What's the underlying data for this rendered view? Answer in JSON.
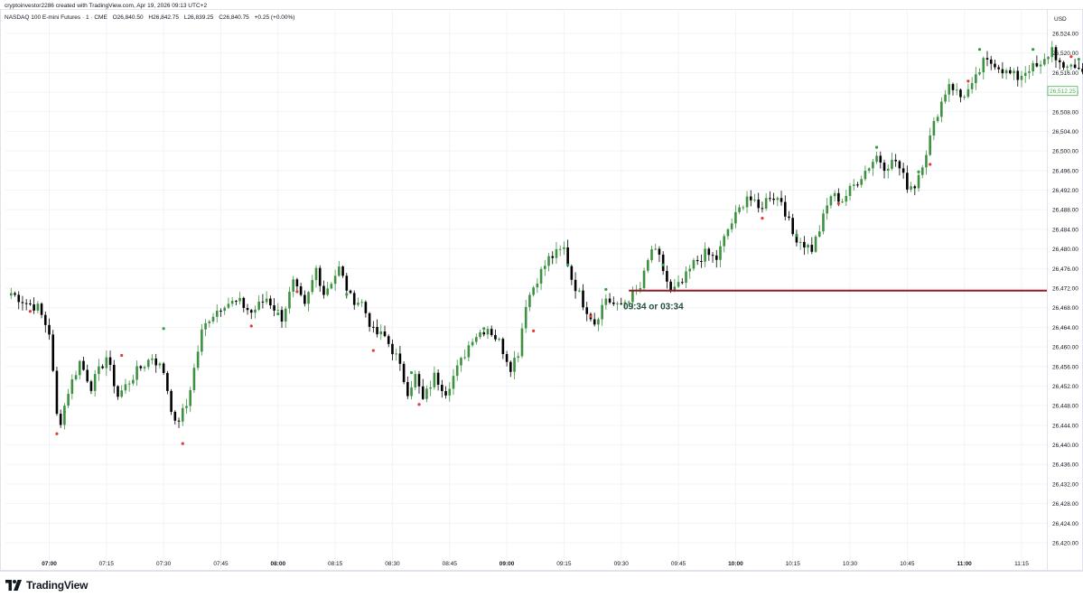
{
  "header": {
    "attribution": "cryptoinvestor2286 created with TradingView.com, Apr 19, 2026 09:13 UTC+2"
  },
  "legend": {
    "symbol": "NASDAQ 100 E-mini Futures · 1 · CME",
    "open": "O26,840.50",
    "high": "H26,842.75",
    "low": "L26,839.25",
    "close": "C26,840.75",
    "change": "+0.25 (+0.00%)"
  },
  "footer": {
    "brand": "TradingView"
  },
  "colors": {
    "up": "#3d9140",
    "down": "#000000",
    "dot_up": "#2e9e3e",
    "dot_down": "#e53935",
    "line": "#8e1b2a",
    "annotation": "#1f4e3d",
    "last_price": "#4caf50",
    "grid": "#f0f3fa",
    "axis_text": "#131722"
  },
  "chart_data": {
    "type": "candlestick",
    "currency": "USD",
    "ylim": [
      26416,
      26528
    ],
    "y_ticks": [
      "26,420.00",
      "26,424.00",
      "26,428.00",
      "26,432.00",
      "26,436.00",
      "26,440.00",
      "26,444.00",
      "26,448.00",
      "26,452.00",
      "26,456.00",
      "26,460.00",
      "26,464.00",
      "26,468.00",
      "26,472.00",
      "26,476.00",
      "26,480.00",
      "26,484.00",
      "26,488.00",
      "26,492.00",
      "26,496.00",
      "26,500.00",
      "26,504.00",
      "26,508.00",
      "26,512.00",
      "26,516.00",
      "26,520.00",
      "26,524.00"
    ],
    "x_ticks": [
      {
        "label": "07:00",
        "minute": 420,
        "bold": true
      },
      {
        "label": "07:15",
        "minute": 435,
        "bold": false
      },
      {
        "label": "07:30",
        "minute": 450,
        "bold": false
      },
      {
        "label": "07:45",
        "minute": 465,
        "bold": false
      },
      {
        "label": "08:00",
        "minute": 480,
        "bold": true
      },
      {
        "label": "08:15",
        "minute": 495,
        "bold": false
      },
      {
        "label": "08:30",
        "minute": 510,
        "bold": false
      },
      {
        "label": "08:45",
        "minute": 525,
        "bold": false
      },
      {
        "label": "09:00",
        "minute": 540,
        "bold": true
      },
      {
        "label": "09:15",
        "minute": 555,
        "bold": false
      },
      {
        "label": "09:30",
        "minute": 570,
        "bold": false
      },
      {
        "label": "09:45",
        "minute": 585,
        "bold": false
      },
      {
        "label": "10:00",
        "minute": 600,
        "bold": true
      },
      {
        "label": "10:15",
        "minute": 615,
        "bold": false
      },
      {
        "label": "10:30",
        "minute": 630,
        "bold": false
      },
      {
        "label": "10:45",
        "minute": 645,
        "bold": false
      },
      {
        "label": "11:00",
        "minute": 660,
        "bold": true
      },
      {
        "label": "11:15",
        "minute": 675,
        "bold": false
      }
    ],
    "start_minute": 410,
    "bar_minutes": 1,
    "close_anchors": [
      [
        0,
        26471
      ],
      [
        4,
        26469
      ],
      [
        7,
        26468
      ],
      [
        10,
        26463
      ],
      [
        12,
        26446
      ],
      [
        13,
        26445
      ],
      [
        15,
        26451
      ],
      [
        18,
        26457
      ],
      [
        21,
        26452
      ],
      [
        25,
        26458
      ],
      [
        28,
        26450
      ],
      [
        33,
        26455
      ],
      [
        37,
        26458
      ],
      [
        40,
        26455
      ],
      [
        43,
        26444
      ],
      [
        46,
        26448
      ],
      [
        50,
        26463
      ],
      [
        52,
        26466
      ],
      [
        56,
        26469
      ],
      [
        60,
        26469
      ],
      [
        63,
        26467
      ],
      [
        67,
        26470
      ],
      [
        71,
        26466
      ],
      [
        74,
        26473
      ],
      [
        77,
        26468
      ],
      [
        80,
        26476
      ],
      [
        82,
        26471
      ],
      [
        86,
        26476
      ],
      [
        89,
        26470
      ],
      [
        92,
        26469
      ],
      [
        95,
        26463
      ],
      [
        98,
        26462
      ],
      [
        101,
        26458
      ],
      [
        104,
        26451
      ],
      [
        106,
        26454
      ],
      [
        108,
        26449
      ],
      [
        111,
        26454
      ],
      [
        114,
        26451
      ],
      [
        118,
        26457
      ],
      [
        121,
        26462
      ],
      [
        125,
        26464
      ],
      [
        128,
        26461
      ],
      [
        131,
        26456
      ],
      [
        133,
        26459
      ],
      [
        135,
        26469
      ],
      [
        138,
        26474
      ],
      [
        141,
        26478
      ],
      [
        145,
        26480
      ],
      [
        147,
        26474
      ],
      [
        150,
        26469
      ],
      [
        153,
        26465
      ],
      [
        156,
        26470
      ],
      [
        159,
        26468
      ],
      [
        162,
        26470
      ],
      [
        165,
        26472
      ],
      [
        168,
        26480
      ],
      [
        170,
        26478
      ],
      [
        173,
        26471
      ],
      [
        176,
        26473
      ],
      [
        179,
        26477
      ],
      [
        182,
        26479
      ],
      [
        185,
        26478
      ],
      [
        188,
        26484
      ],
      [
        191,
        26488
      ],
      [
        193,
        26491
      ],
      [
        196,
        26488
      ],
      [
        199,
        26491
      ],
      [
        202,
        26490
      ],
      [
        205,
        26483
      ],
      [
        208,
        26481
      ],
      [
        210,
        26480
      ],
      [
        212,
        26484
      ],
      [
        215,
        26491
      ],
      [
        218,
        26490
      ],
      [
        221,
        26493
      ],
      [
        224,
        26496
      ],
      [
        227,
        26499
      ],
      [
        229,
        26497
      ],
      [
        232,
        26498
      ],
      [
        235,
        26493
      ],
      [
        237,
        26493
      ],
      [
        240,
        26500
      ],
      [
        243,
        26508
      ],
      [
        246,
        26514
      ],
      [
        249,
        26511
      ],
      [
        252,
        26513
      ],
      [
        255,
        26518
      ],
      [
        258,
        26518
      ],
      [
        261,
        26516
      ],
      [
        264,
        26515
      ],
      [
        267,
        26517
      ],
      [
        270,
        26517
      ],
      [
        273,
        26521
      ],
      [
        276,
        26516
      ],
      [
        278,
        26518
      ],
      [
        281,
        26516
      ],
      [
        284,
        26509
      ],
      [
        285,
        26509
      ],
      [
        287,
        26512
      ]
    ],
    "last_price": 26512.25,
    "last_price_label": "26,512.25",
    "high_markers": [
      [
        14,
        26446
      ],
      [
        40,
        26463
      ],
      [
        70,
        26466
      ],
      [
        88,
        26470
      ],
      [
        105,
        26454
      ],
      [
        124,
        26463
      ],
      [
        146,
        26476
      ],
      [
        156,
        26471
      ],
      [
        171,
        26476
      ],
      [
        206,
        26482
      ],
      [
        227,
        26500
      ],
      [
        238,
        26495
      ],
      [
        254,
        26520
      ],
      [
        268,
        26520
      ],
      [
        280,
        26518
      ]
    ],
    "low_markers": [
      [
        5,
        26468
      ],
      [
        12,
        26443
      ],
      [
        29,
        26459
      ],
      [
        45,
        26441
      ],
      [
        63,
        26465
      ],
      [
        75,
        26472
      ],
      [
        95,
        26460
      ],
      [
        107,
        26449
      ],
      [
        137,
        26464
      ],
      [
        152,
        26467
      ],
      [
        197,
        26487
      ],
      [
        217,
        26490
      ],
      [
        241,
        26498
      ],
      [
        251,
        26515
      ],
      [
        278,
        26520
      ],
      [
        286,
        26515
      ]
    ],
    "horizontal_line": {
      "from_minute": 572,
      "price": 26471.5
    },
    "annotation": {
      "text": "09:34 or 03:34",
      "minute": 571,
      "price": 26468.0
    }
  }
}
